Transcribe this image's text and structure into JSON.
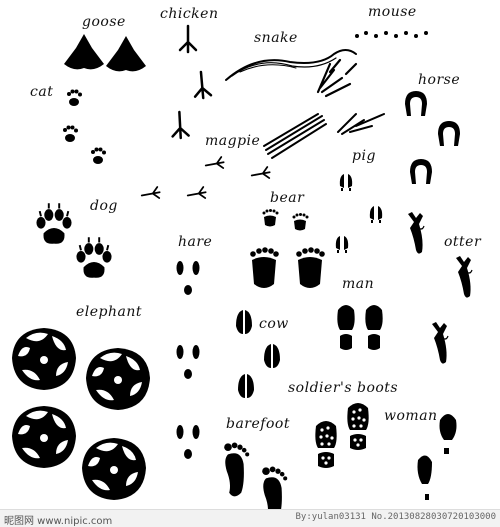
{
  "labels": {
    "goose": "goose",
    "chicken": "chicken",
    "mouse": "mouse",
    "snake": "snake",
    "cat": "cat",
    "horse": "horse",
    "magpie": "magpie",
    "pig": "pig",
    "dog": "dog",
    "bear": "bear",
    "hare": "hare",
    "otter": "otter",
    "man": "man",
    "elephant": "elephant",
    "cow": "cow",
    "soldiers_boots": "soldier's boots",
    "woman": "woman",
    "barefoot": "barefoot"
  },
  "footer": {
    "site": "昵图网 www.nipic.com",
    "id": "By:yulan03131 No.20130828030720103000"
  }
}
